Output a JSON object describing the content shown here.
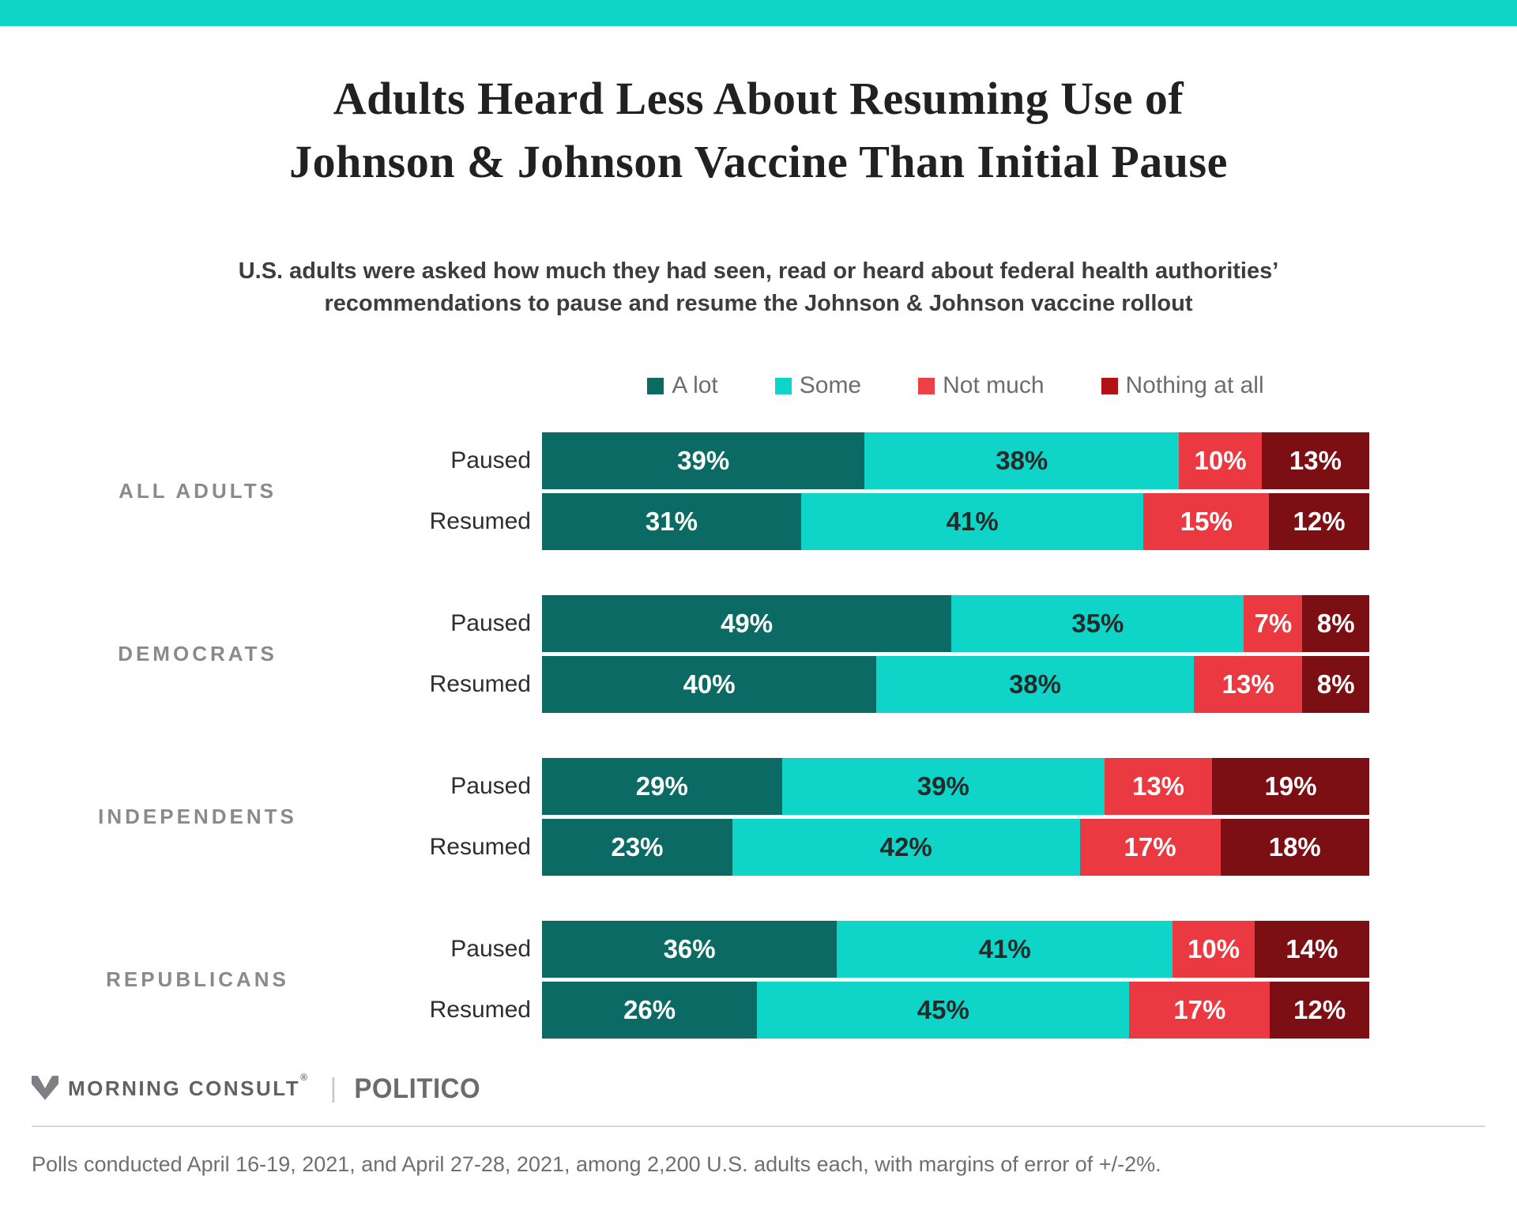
{
  "colors": {
    "topbar": "#0FD5C8",
    "series": [
      "#0C6A64",
      "#0FD5C8",
      "#EA3940",
      "#7C0F14"
    ],
    "series_label_text": [
      "#FFFFFF",
      "#222A2A",
      "#FFFFFF",
      "#FFFFFF"
    ],
    "legend_swatches": [
      "#0C6A64",
      "#0FD5C8",
      "#EE3E46",
      "#B01217"
    ]
  },
  "title": {
    "line1": "Adults Heard Less About Resuming Use of",
    "line2": "Johnson & Johnson Vaccine Than Initial Pause"
  },
  "subtitle": {
    "line1": "U.S. adults were asked how much they had seen, read or heard about federal health authorities’",
    "line2": "recommendations to pause and resume the Johnson & Johnson vaccine rollout"
  },
  "chart_data": {
    "type": "bar",
    "orientation": "horizontal-stacked",
    "unit": "%",
    "axis_range": [
      0,
      100
    ],
    "grid": false,
    "legend_position": "top-center",
    "series_labels": [
      "A lot",
      "Some",
      "Not much",
      "Nothing at all"
    ],
    "groups": [
      {
        "name": "ALL ADULTS",
        "rows": [
          {
            "label": "Paused",
            "values": [
              39,
              38,
              10,
              13
            ]
          },
          {
            "label": "Resumed",
            "values": [
              31,
              41,
              15,
              12
            ]
          }
        ]
      },
      {
        "name": "DEMOCRATS",
        "rows": [
          {
            "label": "Paused",
            "values": [
              49,
              35,
              7,
              8
            ]
          },
          {
            "label": "Resumed",
            "values": [
              40,
              38,
              13,
              8
            ]
          }
        ]
      },
      {
        "name": "INDEPENDENTS",
        "rows": [
          {
            "label": "Paused",
            "values": [
              29,
              39,
              13,
              19
            ]
          },
          {
            "label": "Resumed",
            "values": [
              23,
              42,
              17,
              18
            ]
          }
        ]
      },
      {
        "name": "REPUBLICANS",
        "rows": [
          {
            "label": "Paused",
            "values": [
              36,
              41,
              10,
              14
            ]
          },
          {
            "label": "Resumed",
            "values": [
              26,
              45,
              17,
              12
            ]
          }
        ]
      }
    ]
  },
  "footer": {
    "brand": "MORNING CONSULT",
    "reg_mark": "®",
    "divider": "|",
    "partner": "POLITICO",
    "note": "Polls conducted April 16-19, 2021, and April 27-28, 2021, among 2,200 U.S. adults each, with margins of error of +/-2%."
  }
}
